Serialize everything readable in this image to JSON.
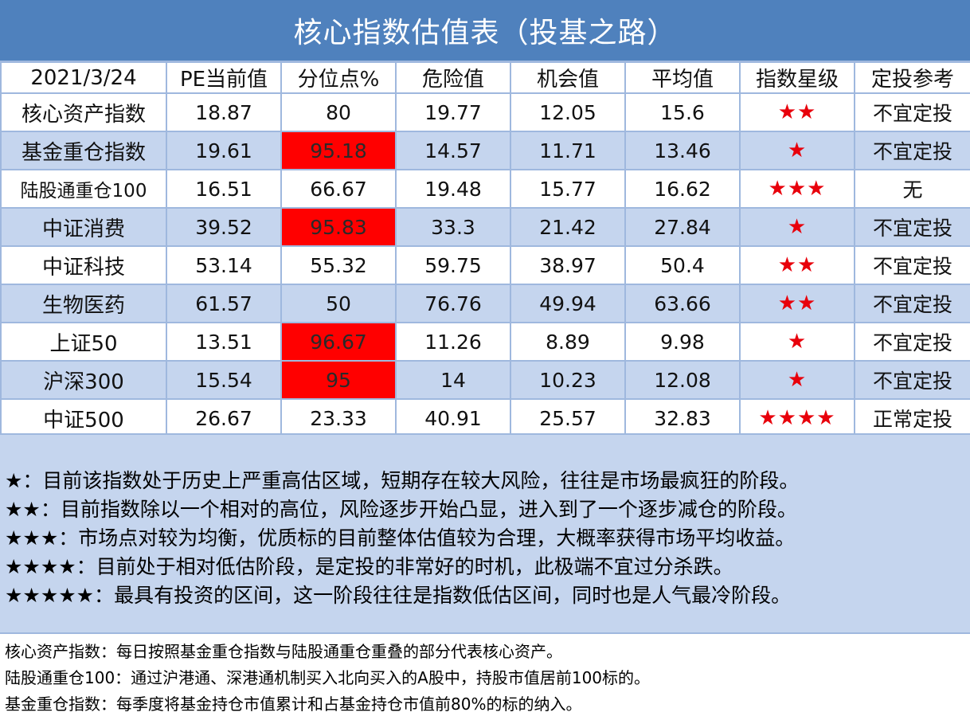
{
  "title": "核心指数估值表（投基之路）",
  "table": {
    "headers": [
      "2021/3/24",
      "PE当前值",
      "分位点%",
      "危险值",
      "机会值",
      "平均值",
      "指数星级",
      "定投参考"
    ],
    "rows": [
      {
        "name": "核心资产指数",
        "pe": "18.87",
        "percentile": "80",
        "danger": "19.77",
        "opportunity": "12.05",
        "average": "15.6",
        "stars": "★★",
        "advice": "不宜定投",
        "hot": false
      },
      {
        "name": "基金重仓指数",
        "pe": "19.61",
        "percentile": "95.18",
        "danger": "14.57",
        "opportunity": "11.71",
        "average": "13.46",
        "stars": "★",
        "advice": "不宜定投",
        "hot": true
      },
      {
        "name": "陆股通重仓100",
        "pe": "16.51",
        "percentile": "66.67",
        "danger": "19.48",
        "opportunity": "15.77",
        "average": "16.62",
        "stars": "★★★",
        "advice": "无",
        "hot": false
      },
      {
        "name": "中证消费",
        "pe": "39.52",
        "percentile": "95.83",
        "danger": "33.3",
        "opportunity": "21.42",
        "average": "27.84",
        "stars": "★",
        "advice": "不宜定投",
        "hot": true
      },
      {
        "name": "中证科技",
        "pe": "53.14",
        "percentile": "55.32",
        "danger": "59.75",
        "opportunity": "38.97",
        "average": "50.4",
        "stars": "★★",
        "advice": "不宜定投",
        "hot": false
      },
      {
        "name": "生物医药",
        "pe": "61.57",
        "percentile": "50",
        "danger": "76.76",
        "opportunity": "49.94",
        "average": "63.66",
        "stars": "★★",
        "advice": "不宜定投",
        "hot": false
      },
      {
        "name": "上证50",
        "pe": "13.51",
        "percentile": "96.67",
        "danger": "11.26",
        "opportunity": "8.89",
        "average": "9.98",
        "stars": "★",
        "advice": "不宜定投",
        "hot": true
      },
      {
        "name": "沪深300",
        "pe": "15.54",
        "percentile": "95",
        "danger": "14",
        "opportunity": "10.23",
        "average": "12.08",
        "stars": "★",
        "advice": "不宜定投",
        "hot": true
      },
      {
        "name": "中证500",
        "pe": "26.67",
        "percentile": "23.33",
        "danger": "40.91",
        "opportunity": "25.57",
        "average": "32.83",
        "stars": "★★★★",
        "advice": "正常定投",
        "hot": false
      }
    ]
  },
  "legend": [
    {
      "mark": "★：",
      "text": "目前该指数处于历史上严重高估区域，短期存在较大风险，往往是市场最疯狂的阶段。"
    },
    {
      "mark": "★★：",
      "text": "目前指数除以一个相对的高位，风险逐步开始凸显，进入到了一个逐步减仓的阶段。"
    },
    {
      "mark": "★★★：",
      "text": "市场点对较为均衡，优质标的目前整体估值较为合理，大概率获得市场平均收益。"
    },
    {
      "mark": "★★★★：",
      "text": "目前处于相对低估阶段，是定投的非常好的时机，此极端不宜过分杀跌。"
    },
    {
      "mark": "★★★★★：",
      "text": "最具有投资的区间，这一阶段往往是指数低估区间，同时也是人气最冷阶段。"
    }
  ],
  "notes": [
    "核心资产指数：每日按照基金重仓指数与陆股通重仓重叠的部分代表核心资产。",
    "陆股通重仓100：通过沪港通、深港通机制买入北向买入的A股中，持股市值居前100标的。",
    "基金重仓指数：每季度将基金持仓市值累计和占基金持仓市值前80%的标的纳入。"
  ],
  "colors": {
    "title_bg": "#4f81bd",
    "row_alt_bg": "#c5d5ee",
    "grid_line": "#9fb8de",
    "hot_cell": "#ff0000",
    "star": "#e8000b"
  }
}
